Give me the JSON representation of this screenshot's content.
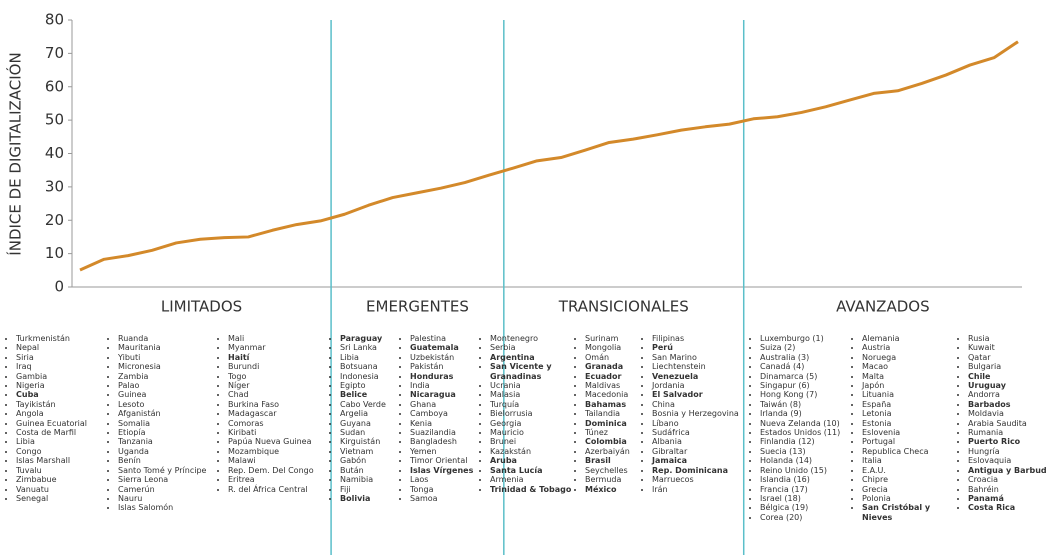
{
  "chart_data": {
    "type": "line",
    "ylabel": "ÍNDICE DE DIGITALIZACIÓN",
    "ylim": [
      0,
      80
    ],
    "yticks": [
      0,
      10,
      20,
      30,
      40,
      50,
      60,
      70,
      80
    ],
    "color": "#d3892a",
    "divider_color": "#5bbfc9",
    "values": [
      5.1,
      8.3,
      9.4,
      11,
      13.2,
      14.3,
      14.8,
      15,
      17,
      18.7,
      19.8,
      21.8,
      24.5,
      26.8,
      28.2,
      29.6,
      31.3,
      33.5,
      35.6,
      37.8,
      38.8,
      41,
      43.3,
      44.3,
      45.6,
      47,
      48,
      48.8,
      50.4,
      51,
      52.3,
      54,
      56,
      58,
      58.8,
      61,
      63.5,
      66.5,
      68.7,
      73.5
    ],
    "groups": [
      {
        "name": "LIMITADOS",
        "columns": [
          [
            "Turkmenistán",
            "Nepal",
            "Siria",
            "Iraq",
            "Gambia",
            "Nigeria",
            {
              "name": "Cuba",
              "bold": true
            },
            "Tayikistán",
            "Angola",
            "Guinea Ecuatorial",
            "Costa de Marfil",
            "Libia",
            "Congo",
            "Islas Marshall",
            "Tuvalu",
            "Zimbabue",
            "Vanuatu",
            "Senegal"
          ],
          [
            "Ruanda",
            "Mauritania",
            "Yibuti",
            "Micronesia",
            "Zambia",
            "Palao",
            "Guinea",
            "Lesoto",
            "Afganistán",
            "Somalia",
            "Etiopía",
            "Tanzania",
            "Uganda",
            "Benín",
            "Santo Tomé y Príncipe",
            "Sierra Leona",
            "Camerún",
            "Nauru",
            "Islas Salomón"
          ],
          [
            "Mali",
            "Myanmar",
            {
              "name": "Haití",
              "bold": true
            },
            "Burundi",
            "Togo",
            "Níger",
            "Chad",
            "Burkina Faso",
            "Madagascar",
            "Comoras",
            "Kiribati",
            "Papúa Nueva Guinea",
            "Mozambique",
            "Malawi",
            "Rep. Dem. Del Congo",
            "Eritrea",
            "R. del África Central"
          ]
        ]
      },
      {
        "name": "EMERGENTES",
        "columns": [
          [
            {
              "name": "Paraguay",
              "bold": true
            },
            "Sri Lanka",
            "Libia",
            "Botsuana",
            "Indonesia",
            "Egipto",
            {
              "name": "Belice",
              "bold": true
            },
            "Cabo Verde",
            "Argelia",
            "Guyana",
            "Sudan",
            "Kirguistán",
            "Vietnam",
            "Gabón",
            "Bután",
            "Namibia",
            "Fiji",
            {
              "name": "Bolivia",
              "bold": true
            }
          ],
          [
            "Palestina",
            {
              "name": "Guatemala",
              "bold": true
            },
            "Uzbekistán",
            "Pakistán",
            {
              "name": "Honduras",
              "bold": true
            },
            "India",
            {
              "name": "Nicaragua",
              "bold": true
            },
            "Ghana",
            "Camboya",
            "Kenia",
            "Suazilandia",
            "Bangladesh",
            "Yemen",
            "Timor Oriental",
            {
              "name": "Islas Vírgenes",
              "bold": true
            },
            "Laos",
            "Tonga",
            "Samoa"
          ]
        ]
      },
      {
        "name": "TRANSICIONALES",
        "columns": [
          [
            "Montenegro",
            "Serbia",
            {
              "name": "Argentina",
              "bold": true
            },
            {
              "name": "San Vicente y Granadinas",
              "bold": true
            },
            "Ucrania",
            "Malasia",
            "Turquía",
            "Bielorrusia",
            "Georgia",
            "Mauricio",
            "Brunei",
            "Kazakstán",
            {
              "name": "Aruba",
              "bold": true
            },
            {
              "name": "Santa Lucía",
              "bold": true
            },
            "Armenia",
            {
              "name": "Trinidad & Tobago",
              "bold": true
            }
          ],
          [
            "Surinam",
            "Mongolia",
            "Omán",
            {
              "name": "Granada",
              "bold": true
            },
            {
              "name": "Ecuador",
              "bold": true
            },
            "Maldivas",
            "Macedonia",
            {
              "name": "Bahamas",
              "bold": true
            },
            "Tailandia",
            {
              "name": "Dominica",
              "bold": true
            },
            "Túnez",
            {
              "name": "Colombia",
              "bold": true
            },
            "Azerbaiyán",
            {
              "name": "Brasil",
              "bold": true
            },
            "Seychelles",
            "Bermuda",
            {
              "name": "México",
              "bold": true
            }
          ],
          [
            "Filipinas",
            {
              "name": "Perú",
              "bold": true
            },
            "San Marino",
            "Liechtenstein",
            {
              "name": "Venezuela",
              "bold": true
            },
            "Jordania",
            {
              "name": "El Salvador",
              "bold": true
            },
            "China",
            "Bosnia y Herzegovina",
            "Líbano",
            "Sudáfrica",
            "Albania",
            "Gibraltar",
            {
              "name": "Jamaica",
              "bold": true
            },
            {
              "name": "Rep. Dominicana",
              "bold": true
            },
            "Marruecos",
            "Irán"
          ]
        ]
      },
      {
        "name": "AVANZADOS",
        "columns": [
          [
            "Luxemburgo (1)",
            "Suiza (2)",
            "Australia (3)",
            "Canadá (4)",
            "Dinamarca (5)",
            "Singapur (6)",
            "Hong Kong (7)",
            "Taiwán (8)",
            "Irlanda (9)",
            "Nueva Zelanda (10)",
            "Estados Unidos (11)",
            "Finlandia (12)",
            "Suecia (13)",
            "Holanda (14)",
            "Reino Unido (15)",
            "Islandia (16)",
            "Francia (17)",
            "Israel (18)",
            "Bélgica (19)",
            "Corea (20)"
          ],
          [
            "Alemania",
            "Austria",
            "Noruega",
            "Macao",
            "Malta",
            "Japón",
            "Lituania",
            "España",
            "Letonia",
            "Estonia",
            "Eslovenia",
            "Portugal",
            "Republica Checa",
            "Italia",
            "E.A.U.",
            "Chipre",
            "Grecia",
            "Polonia",
            {
              "name": "San Cristóbal y Nieves",
              "bold": true
            }
          ],
          [
            "Rusia",
            "Kuwait",
            "Qatar",
            "Bulgaria",
            {
              "name": "Chile",
              "bold": true
            },
            {
              "name": "Uruguay",
              "bold": true
            },
            "Andorra",
            {
              "name": "Barbados",
              "bold": true
            },
            "Moldavia",
            "Arabia Saudita",
            "Rumania",
            {
              "name": "Puerto Rico",
              "bold": true
            },
            "Hungría",
            "Eslovaquia",
            {
              "name": "Antigua y Barbuda",
              "bold": true
            },
            "Croacia",
            "Bahréin",
            {
              "name": "Panamá",
              "bold": true
            },
            {
              "name": "Costa Rica",
              "bold": true
            }
          ]
        ]
      }
    ]
  }
}
